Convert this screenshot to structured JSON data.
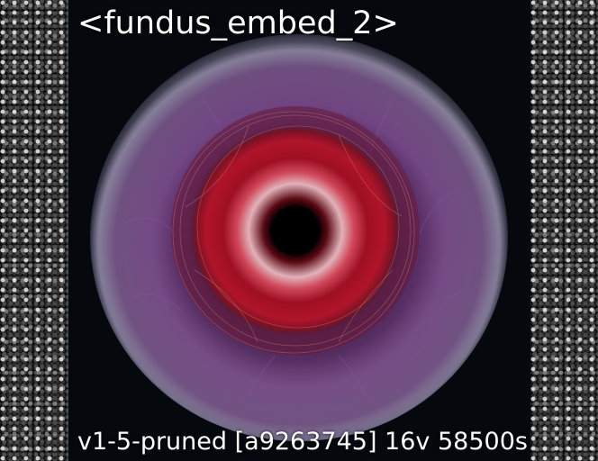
{
  "image": {
    "title_caption": "<fundus_embed_2>",
    "footer_caption": "v1-5-pruned [a9263745]  16v 58500s",
    "colors": {
      "iris_purple": "#6a3d7c",
      "lesion_red": "#c0142a",
      "background": "#000000"
    }
  }
}
